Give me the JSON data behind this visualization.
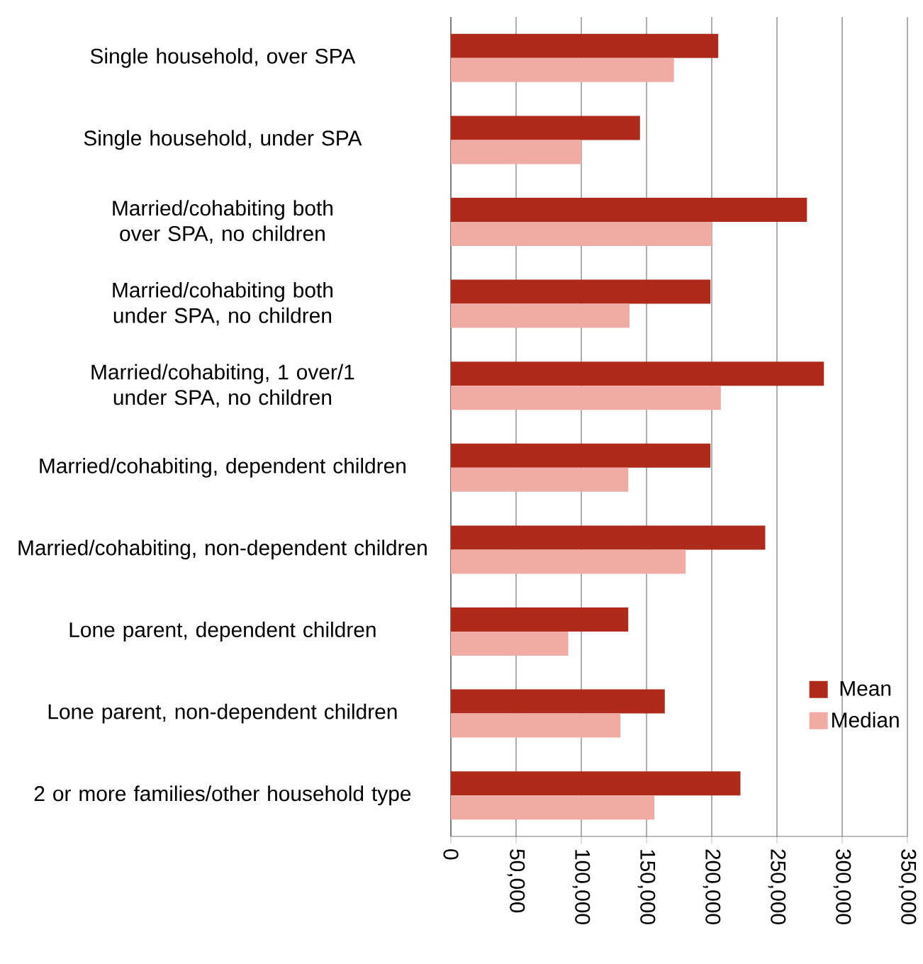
{
  "chart_data": {
    "type": "bar",
    "orientation": "horizontal",
    "categories": [
      "Single household, over SPA",
      "Single household, under SPA",
      "Married/cohabiting both over SPA, no children",
      "Married/cohabiting both under SPA, no children",
      "Married/cohabiting, 1 over/1 under SPA, no children",
      "Married/cohabiting, dependent children",
      "Married/cohabiting, non-dependent children",
      "Lone parent, dependent children",
      "Lone parent, non-dependent children",
      "2 or more families/other household type"
    ],
    "series": [
      {
        "name": "Mean",
        "color": "#b02a1c",
        "values": [
          205000,
          145000,
          273000,
          199000,
          286000,
          199000,
          241000,
          136000,
          164000,
          222000
        ]
      },
      {
        "name": "Median",
        "color": "#f0aca4",
        "values": [
          171000,
          100000,
          200000,
          137000,
          207000,
          136000,
          180000,
          90000,
          130000,
          156000
        ]
      }
    ],
    "xlim": [
      0,
      350000
    ],
    "xticks": [
      0,
      {
        "value": 50000,
        "label": "50,000"
      },
      {
        "value": 100000,
        "label": "100,000"
      },
      {
        "value": 150000,
        "label": "150,000"
      },
      {
        "value": 200000,
        "label": "200,000"
      },
      {
        "value": 250000,
        "label": "250,000"
      },
      {
        "value": 300000,
        "label": "300,000"
      },
      {
        "value": 350000,
        "label": "350,000"
      }
    ],
    "grid": "x",
    "legend": "right"
  }
}
